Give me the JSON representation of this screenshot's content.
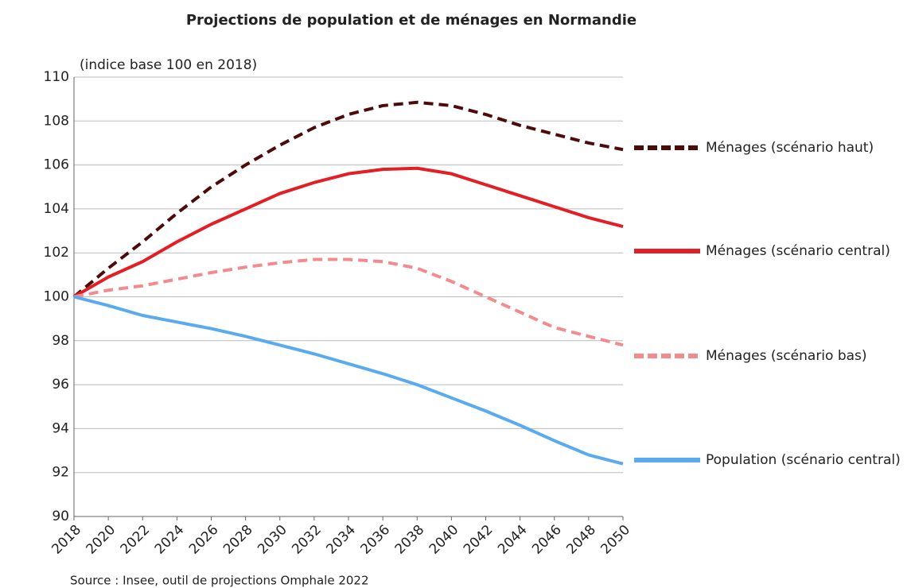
{
  "chart_data": {
    "type": "line",
    "title": "Projections de population et de ménages en Normandie",
    "subtitle": "(indice base 100 en 2018)",
    "source": "Source : Insee, outil de projections Omphale 2022",
    "x": [
      2018,
      2020,
      2022,
      2024,
      2026,
      2028,
      2030,
      2032,
      2034,
      2036,
      2038,
      2040,
      2042,
      2044,
      2046,
      2048,
      2050
    ],
    "xlim": [
      2018,
      2050
    ],
    "xticks": [
      2018,
      2020,
      2022,
      2024,
      2026,
      2028,
      2030,
      2032,
      2034,
      2036,
      2038,
      2040,
      2042,
      2044,
      2046,
      2048,
      2050
    ],
    "ylim": [
      90,
      110
    ],
    "yticks": [
      90,
      92,
      94,
      96,
      98,
      100,
      102,
      104,
      106,
      108,
      110
    ],
    "grid": true,
    "series": [
      {
        "name": "Ménages (scénario haut)",
        "color": "#4d0a0a",
        "dashed": true,
        "values": [
          100,
          101.3,
          102.5,
          103.8,
          105.0,
          106.0,
          106.9,
          107.7,
          108.3,
          108.7,
          108.85,
          108.7,
          108.3,
          107.8,
          107.4,
          107.0,
          106.7
        ]
      },
      {
        "name": "Ménages (scénario central)",
        "color": "#e31e24",
        "dashed": false,
        "values": [
          100,
          100.9,
          101.6,
          102.5,
          103.3,
          104.0,
          104.7,
          105.2,
          105.6,
          105.8,
          105.85,
          105.6,
          105.1,
          104.6,
          104.1,
          103.6,
          103.2
        ]
      },
      {
        "name": "Ménages (scénario bas)",
        "color": "#f28b8e",
        "dashed": true,
        "values": [
          100,
          100.3,
          100.5,
          100.8,
          101.1,
          101.35,
          101.55,
          101.7,
          101.7,
          101.6,
          101.3,
          100.7,
          100.0,
          99.3,
          98.6,
          98.2,
          97.8
        ]
      },
      {
        "name": "Population (scénario central)",
        "color": "#5aaaf0",
        "dashed": false,
        "values": [
          100,
          99.6,
          99.15,
          98.85,
          98.55,
          98.2,
          97.8,
          97.4,
          96.95,
          96.5,
          96.0,
          95.4,
          94.8,
          94.15,
          93.45,
          92.8,
          92.4
        ]
      }
    ]
  }
}
